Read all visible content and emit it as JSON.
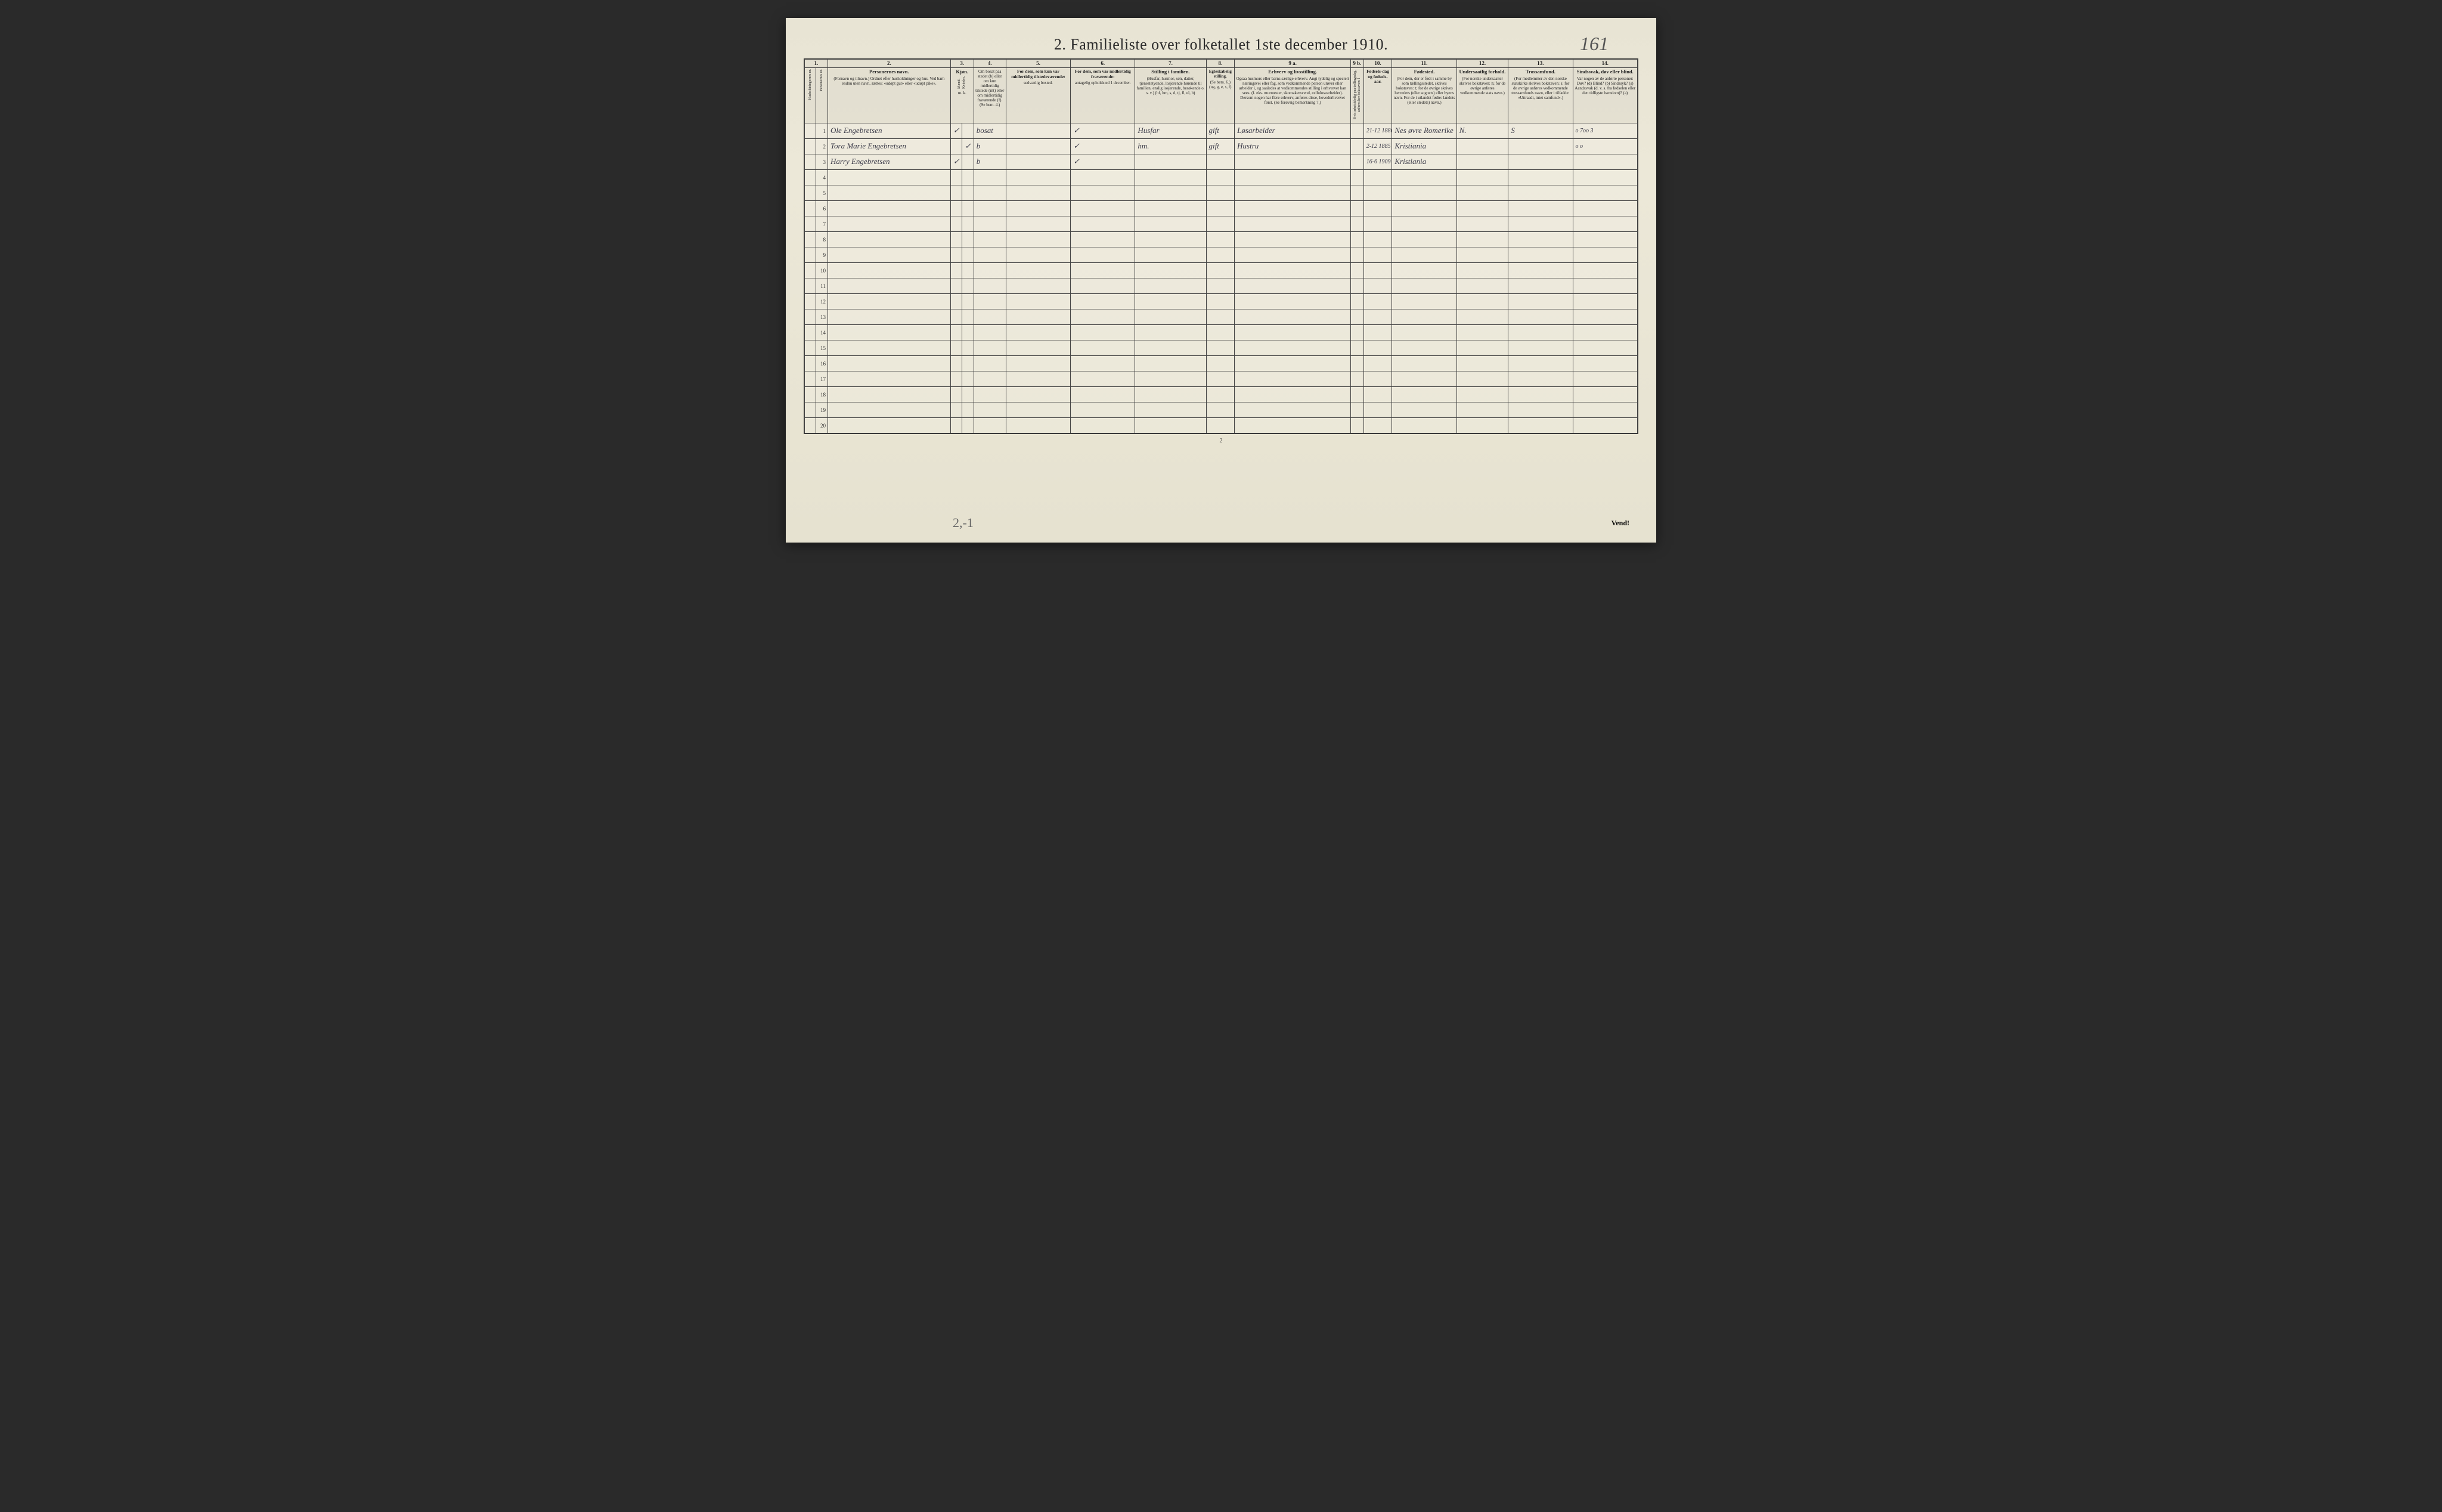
{
  "title": "2.  Familieliste over folketallet 1ste december 1910.",
  "page_annotation": "161",
  "footer_page": "2",
  "footer_annotation": "2,-1",
  "vend": "Vend!",
  "columns": {
    "nums": [
      "1.",
      "2.",
      "3.",
      "4.",
      "5.",
      "6.",
      "7.",
      "8.",
      "9 a.",
      "9 b.",
      "10.",
      "11.",
      "12.",
      "13.",
      "14."
    ],
    "c1a": "Husholdningernes nr.",
    "c1b": "Personernes nr.",
    "c2_title": "Personernes navn.",
    "c2_sub": "(Fornavn og tilnavn.) Ordnet efter husholdninger og hus. Ved barn endnu uten navn, sættes: «udøpt gut» eller «udøpt pike».",
    "c3_title": "Kjøn.",
    "c3_m": "Mænd.",
    "c3_k": "Kvinder.",
    "c3_sub": "m.  k.",
    "c4_title": "Om bosat paa stedet (b) eller om kun midlertidig tilstede (mt) eller om midlertidig fraværende (f). (Se bem. 4.)",
    "c5_title": "For dem, som kun var midlertidig tilstedeværende:",
    "c5_sub": "sedvanlig bosted.",
    "c6_title": "For dem, som var midlertidig fraværende:",
    "c6_sub": "antagelig opholdsted 1 december.",
    "c7_title": "Stilling i familien.",
    "c7_sub": "(Husfar, husmor, søn, datter, tjenestetyende, losjerende hørende til familien, enslig losjerende, besøkende o. s. v.) (hf, hm, s, d, tj, fl, el, b)",
    "c8_title": "Egteskabelig stilling.",
    "c8_sub": "(Se bem. 6.) (ug, g, e, s, f)",
    "c9a_title": "Erhverv og livsstilling.",
    "c9a_sub": "Ogsaa husmors eller barns særlige erhverv. Angi tydelig og specielt næringsvei eller fag, som vedkommende person utøver eller arbeider i, og saaledes at vedkommendes stilling i erhvervet kan sees. (f. eks. murmester, skomakersvend, cellulosearbeider). Dersom nogen har flere erhverv, anføres disse, hovederhvervet først. (Se forøvrig bemerkning 7.)",
    "c9b": "Hvis arbeidsledig paa tællingsdag, anføres her bokstaven: l",
    "c10_title": "Fødsels-dag og fødsels-aar.",
    "c11_title": "Fødested.",
    "c11_sub": "(For dem, der er født i samme by som tællingsstedet, skrives bokstaven: t; for de øvrige skrives herredets (eller sognets) eller byens navn. For de i utlandet fødte: landets (eller stedets) navn.)",
    "c12_title": "Undersaatlig forhold.",
    "c12_sub": "(For norske undersaatter skrives bokstaven: n; for de øvrige anføres vedkommende stats navn.)",
    "c13_title": "Trossamfund.",
    "c13_sub": "(For medlemmer av den norske statskirke skrives bokstaven: s; for de øvrige anføres vedkommende trossamfunds navn, eller i tilfælde: «Uttraadt, intet samfund».)",
    "c14_title": "Sindssvak, døv eller blind.",
    "c14_sub": "Var nogen av de anførte personer: Døv? (d) Blind? (b) Sindssyk? (s) Aandssvak (d. v. s. fra fødselen eller den tidligste barndom)? (a)"
  },
  "rows": [
    {
      "n": "1",
      "name": "Ole Engebretsen",
      "sex": "m",
      "bosat": "bosat",
      "c5": "",
      "c6": "",
      "c7": "Husfar",
      "c8": "gift",
      "c9a": "Løsarbeider",
      "c10": "21-12 1880",
      "c11": "Nes øvre Romerike",
      "c12": "N.",
      "c13": "S",
      "c14": "o  7oo 3"
    },
    {
      "n": "2",
      "name": "Tora Marie Engebretsen",
      "sex": "k",
      "bosat": "b",
      "c5": "",
      "c6": "",
      "c7": "hm.",
      "c8": "gift",
      "c9a": "Hustru",
      "c10": "2-12 1885",
      "c11": "Kristiania",
      "c12": "",
      "c13": "",
      "c14": "o   o"
    },
    {
      "n": "3",
      "name": "Harry Engebretsen",
      "sex": "m",
      "bosat": "b",
      "c5": "",
      "c6": "",
      "c7": "",
      "c8": "",
      "c9a": "",
      "c10": "16-6 1909",
      "c11": "Kristiania",
      "c12": "",
      "c13": "",
      "c14": ""
    }
  ],
  "colwidths": {
    "c1a": 18,
    "c1b": 18,
    "c2": 190,
    "c3m": 18,
    "c3k": 18,
    "c4": 50,
    "c5": 100,
    "c6": 100,
    "c7": 110,
    "c8": 44,
    "c9a": 180,
    "c9b": 20,
    "c10": 44,
    "c11": 100,
    "c12": 80,
    "c13": 100,
    "c14": 100
  },
  "colors": {
    "paper": "#e8e4d4",
    "ink": "#2a2a2a",
    "rule": "#444",
    "handwriting": "#3a3a48"
  }
}
